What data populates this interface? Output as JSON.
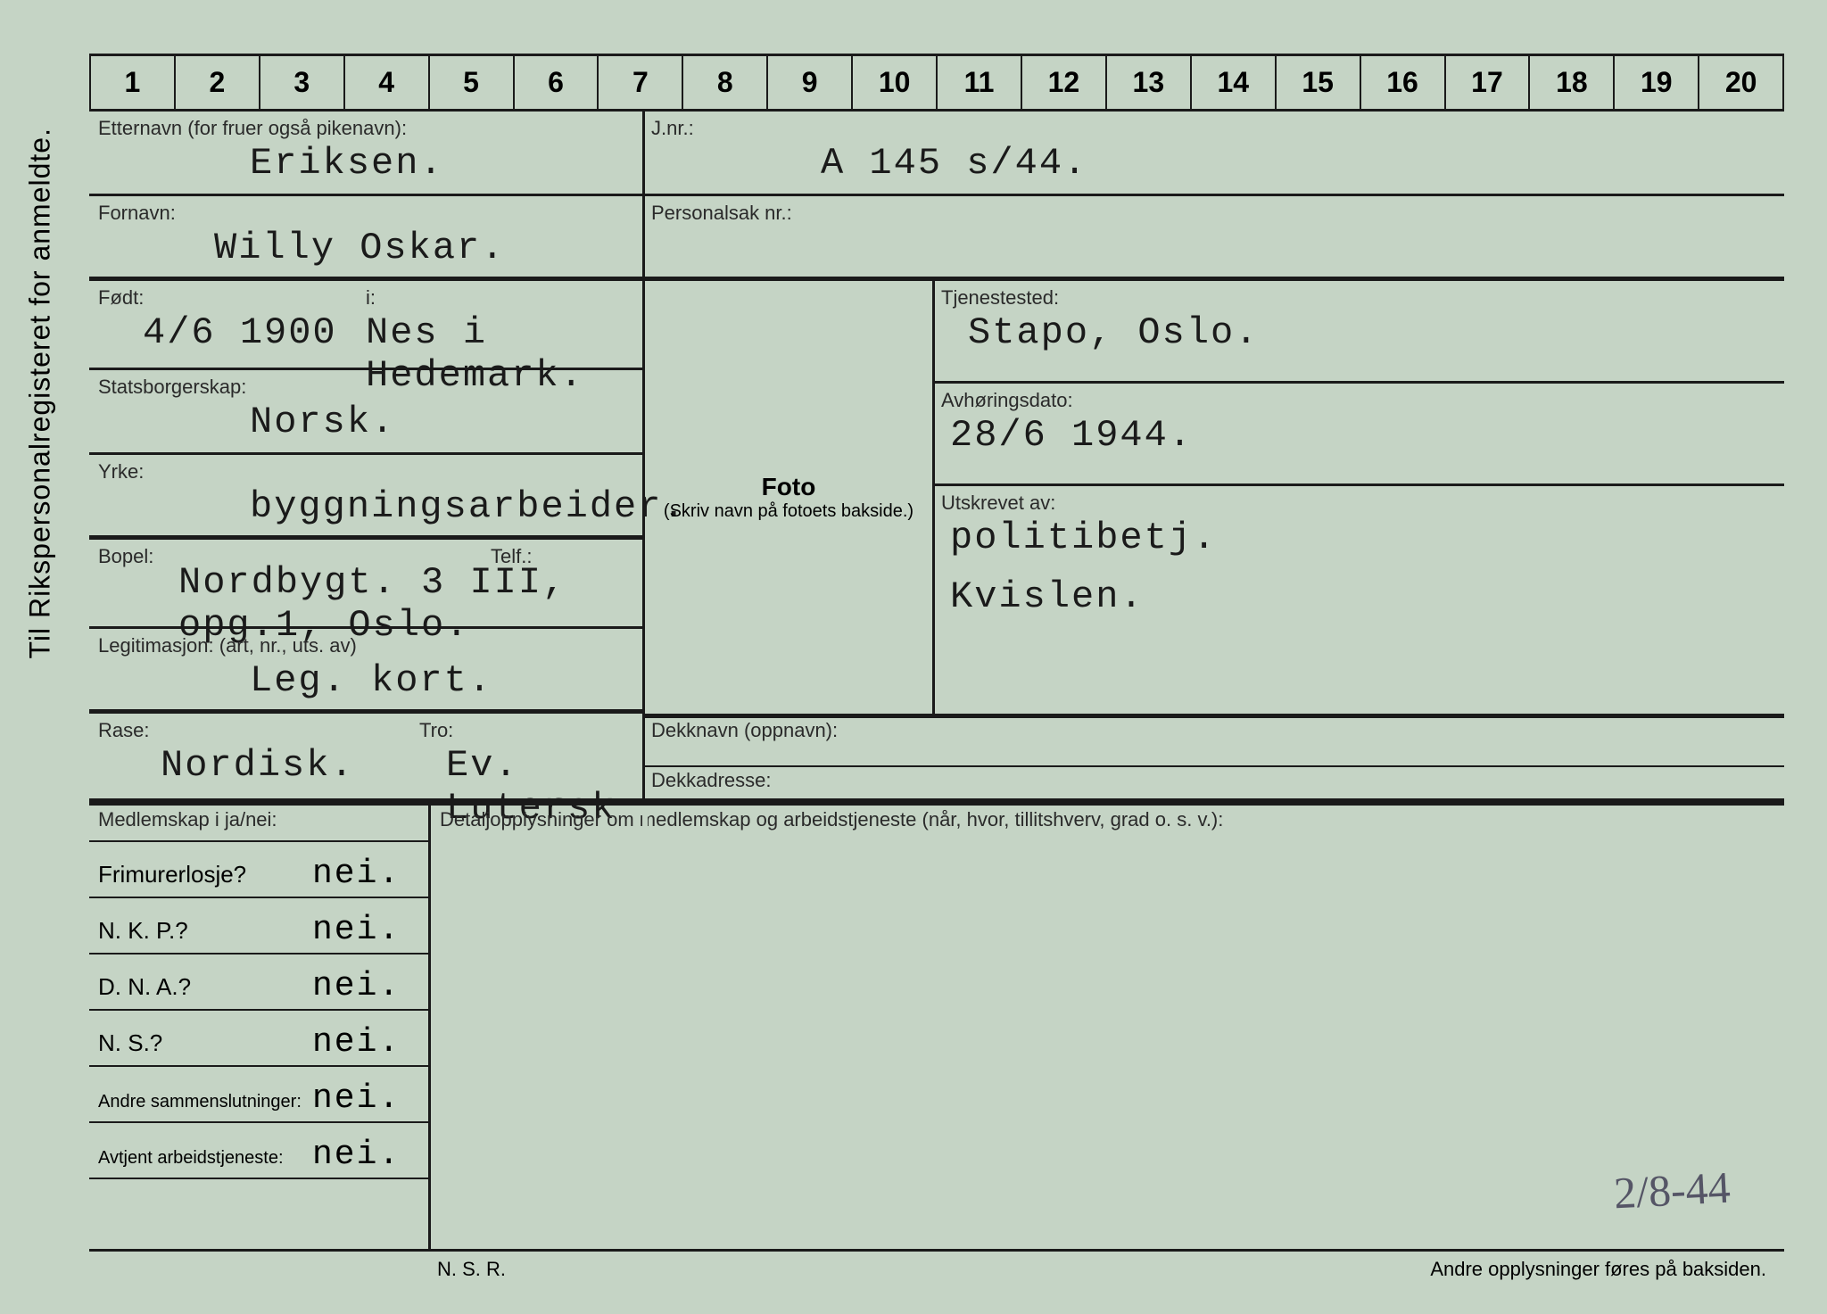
{
  "colors": {
    "paper": "#c5d4c5",
    "ink": "#1a1a1a",
    "type": "#1a1a1a"
  },
  "side_label": "Til Rikspersonalregisteret for anmeldte.",
  "ruler": [
    "1",
    "2",
    "3",
    "4",
    "5",
    "6",
    "7",
    "8",
    "9",
    "10",
    "11",
    "12",
    "13",
    "14",
    "15",
    "16",
    "17",
    "18",
    "19",
    "20"
  ],
  "fields": {
    "etternavn_label": "Etternavn (for fruer også pikenavn):",
    "etternavn": "Eriksen.",
    "fornavn_label": "Fornavn:",
    "fornavn": "Willy Oskar.",
    "fodt_label": "Født:",
    "fodt": "4/6 1900",
    "i_label": "i:",
    "i_sted": "Nes i Hedemark.",
    "statsborger_label": "Statsborgerskap:",
    "statsborger": "Norsk.",
    "yrke_label": "Yrke:",
    "yrke": "byggningsarbeider.",
    "bopel_label": "Bopel:",
    "bopel": "Nordbygt. 3 III, opg.1, Oslo.",
    "telf_label": "Telf.:",
    "legitimasjon_label": "Legitimasjon: (art, nr., uts. av)",
    "legitimasjon": "Leg. kort.",
    "rase_label": "Rase:",
    "rase": "Nordisk.",
    "tro_label": "Tro:",
    "tro": "Ev. Lutersk",
    "jnr_label": "J.nr.:",
    "jnr": "A  145 s/44.",
    "personalsak_label": "Personalsak nr.:",
    "tjenestested_label": "Tjenestested:",
    "tjenestested": "Stapo, Oslo.",
    "avhoringsdato_label": "Avhøringsdato:",
    "avhoringsdato": "28/6 1944.",
    "utskrevet_label": "Utskrevet av:",
    "utskrevet1": "politibetj.",
    "utskrevet2": "Kvislen.",
    "dekknavn_label": "Dekknavn (oppnavn):",
    "dekkadresse_label": "Dekkadresse:",
    "foto_title": "Foto",
    "foto_sub": "(Skriv navn på fotoets bakside.)"
  },
  "membership": {
    "header": "Medlemskap i ja/nei:",
    "detail_header": "Detaljopplysninger om medlemskap og arbeidstjeneste (når, hvor, tillitshverv, grad o. s. v.):",
    "rows": [
      {
        "q": "Frimurerlosje?",
        "a": "nei."
      },
      {
        "q": "N. K. P.?",
        "a": "nei."
      },
      {
        "q": "D. N. A.?",
        "a": "nei."
      },
      {
        "q": "N. S.?",
        "a": "nei."
      },
      {
        "q_small": "Andre sammenslutninger:",
        "a": "nei."
      },
      {
        "q_small": "Avtjent arbeidstjeneste:",
        "a": "nei."
      }
    ]
  },
  "footer": {
    "left": "N. S. R.",
    "right": "Andre opplysninger føres på baksiden."
  },
  "handwritten": "2/8-44"
}
